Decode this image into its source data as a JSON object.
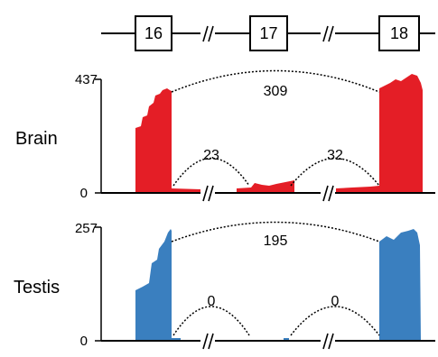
{
  "exons": [
    {
      "label": "16"
    },
    {
      "label": "17"
    },
    {
      "label": "18"
    }
  ],
  "tracks": [
    {
      "tissue": "Brain",
      "color": "#e41e26",
      "ymax_label": "437",
      "ymin_label": "0",
      "junctions": {
        "skip": "309",
        "left": "23",
        "right": "32"
      }
    },
    {
      "tissue": "Testis",
      "color": "#3a7fbf",
      "ymax_label": "257",
      "ymin_label": "0",
      "junctions": {
        "skip": "195",
        "left": "0",
        "right": "0"
      }
    }
  ],
  "colors": {
    "brain": "#e41e26",
    "testis": "#3a7fbf",
    "line": "#000000"
  }
}
